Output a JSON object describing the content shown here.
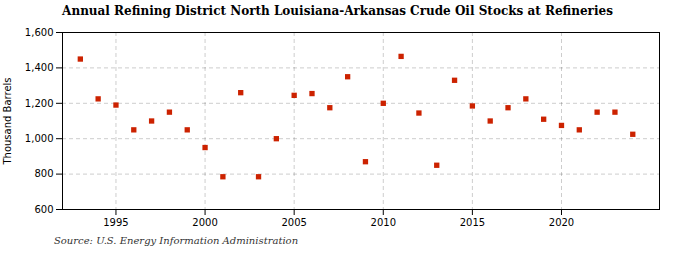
{
  "chart_data": {
    "type": "scatter",
    "title": "Annual Refining District North Louisiana-Arkansas Crude Oil Stocks at Refineries",
    "ylabel": "Thousand Barrels",
    "source": "Source: U.S. Energy Information Administration",
    "x": [
      1993,
      1994,
      1995,
      1996,
      1997,
      1998,
      1999,
      2000,
      2001,
      2002,
      2003,
      2004,
      2005,
      2006,
      2007,
      2008,
      2009,
      2010,
      2011,
      2012,
      2013,
      2014,
      2015,
      2016,
      2017,
      2018,
      2019,
      2020,
      2021,
      2022,
      2023,
      2024
    ],
    "values": [
      1450,
      1225,
      1190,
      1050,
      1100,
      1150,
      1050,
      950,
      785,
      1260,
      785,
      1000,
      1245,
      1255,
      1175,
      1350,
      870,
      1200,
      1465,
      1145,
      850,
      1330,
      1185,
      1100,
      1175,
      1225,
      1110,
      1075,
      1050,
      1150,
      1150,
      1025
    ],
    "color": "#cc2200",
    "marker": "square",
    "xlim": [
      1992.0,
      2025.5
    ],
    "xticks": [
      1995,
      2000,
      2005,
      2010,
      2015,
      2020
    ],
    "ylim": [
      600,
      1600
    ],
    "yticks": [
      600,
      800,
      {
        "value": 1000,
        "label": "1,000"
      },
      {
        "value": 1200,
        "label": "1,200"
      },
      {
        "value": 1400,
        "label": "1,400"
      },
      {
        "value": 1600,
        "label": "1,600"
      }
    ],
    "grid": true
  }
}
